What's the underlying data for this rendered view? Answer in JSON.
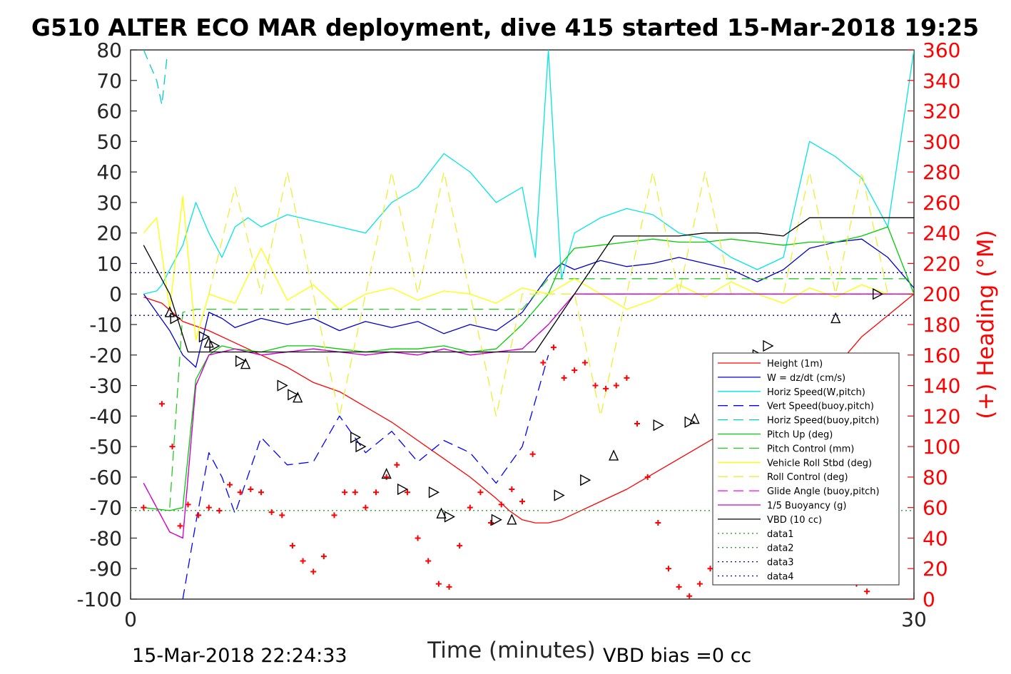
{
  "chart_data": {
    "type": "line",
    "title": "G510 ALTER ECO MAR deployment, dive 415 started 15-Mar-2018 19:25",
    "xlabel": "Time (minutes)",
    "ylabel_right": "(+) Heading (°M)",
    "xlim": [
      0,
      30
    ],
    "ylim_left": [
      -100,
      80
    ],
    "ylim_right": [
      0,
      360
    ],
    "x_ticks": [
      "0",
      "30"
    ],
    "y_ticks_left": [
      "80",
      "70",
      "60",
      "50",
      "40",
      "30",
      "20",
      "10",
      "0",
      "-10",
      "-20",
      "-30",
      "-40",
      "-50",
      "-60",
      "-70",
      "-80",
      "-90",
      "-100"
    ],
    "y_ticks_right": [
      "360",
      "340",
      "320",
      "300",
      "280",
      "260",
      "240",
      "220",
      "200",
      "180",
      "160",
      "140",
      "120",
      "100",
      "80",
      "60",
      "40",
      "20",
      "0"
    ],
    "grid": false,
    "legend_position": "lower-right",
    "footer_left": "15-Mar-2018 22:24:33",
    "footer_right": "VBD bias =0 cc",
    "colors": {
      "height": "#ff0000",
      "w": "#0000cc",
      "horiz_speed_w": "#00e5e5",
      "vert_speed_buoy": "#0000ff",
      "horiz_speed_buoy": "#00cccc",
      "pitch_up": "#00cc00",
      "pitch_control": "#22cc22",
      "roll": "#ffff00",
      "roll_control": "#eeee33",
      "glide_angle": "#ff00ff",
      "buoyancy": "#cc00cc",
      "vbd": "#000000",
      "heading": "#ff0000",
      "data": "#2ca02c",
      "data_blue": "#0000aa"
    },
    "series": [
      {
        "name": "Height (1m)",
        "style": "solid",
        "color_key": "height",
        "x": [
          0.5,
          1.2,
          2,
          3,
          4,
          5,
          6,
          7,
          8,
          9,
          10,
          11,
          12,
          13,
          14,
          14.5,
          15,
          15.5,
          16,
          16.5,
          17,
          18,
          19,
          20,
          21,
          22,
          23,
          24,
          25,
          26,
          27,
          28,
          29,
          30
        ],
        "y": [
          -1,
          -3,
          -9,
          -12,
          -16,
          -20,
          -24,
          -29,
          -32,
          -37,
          -42,
          -48,
          -54,
          -60,
          -67,
          -71,
          -74,
          -75,
          -75,
          -74,
          -72,
          -68,
          -64,
          -59,
          -54,
          -49,
          -44,
          -41,
          -38,
          -33,
          -24,
          -14,
          -7,
          0
        ]
      },
      {
        "name": "W = dz/dt (cm/s)",
        "style": "solid",
        "color_key": "w",
        "x": [
          0.5,
          1.5,
          2,
          2.5,
          3,
          3.5,
          4,
          5,
          6,
          7,
          8,
          9,
          10,
          11,
          12,
          13,
          14,
          15,
          15.5,
          16,
          16.5,
          17,
          18,
          19,
          20,
          21,
          22,
          23,
          24,
          25,
          26,
          27,
          28,
          29,
          30
        ],
        "y": [
          0,
          -12,
          -20,
          -24,
          -6,
          -8,
          -11,
          -8,
          -10,
          -8,
          -12,
          -9,
          -11,
          -9,
          -13,
          -10,
          -12,
          -6,
          0,
          6,
          10,
          8,
          11,
          9,
          10,
          12,
          10,
          8,
          4,
          8,
          15,
          17,
          18,
          12,
          2
        ]
      },
      {
        "name": "Horiz Speed(W,pitch)",
        "style": "solid",
        "color_key": "horiz_speed_w",
        "x": [
          0.5,
          1,
          1.2,
          1.5,
          2,
          2.5,
          3,
          3.5,
          4,
          4.5,
          5,
          6,
          7,
          8,
          9,
          10,
          11,
          12,
          13,
          14,
          15,
          15.5,
          16,
          16.5,
          17,
          18,
          19,
          20,
          21,
          22,
          23,
          24,
          25,
          26,
          27,
          28,
          29,
          30
        ],
        "y": [
          0,
          1,
          3,
          8,
          16,
          30,
          20,
          12,
          22,
          25,
          22,
          26,
          24,
          22,
          20,
          30,
          35,
          46,
          40,
          30,
          35,
          12,
          80,
          5,
          20,
          25,
          28,
          26,
          20,
          18,
          12,
          8,
          12,
          50,
          45,
          38,
          22,
          80
        ]
      },
      {
        "name": "Vert Speed(buoy,pitch)",
        "style": "dash",
        "color_key": "vert_speed_buoy",
        "x": [
          2,
          2.5,
          3,
          3.5,
          4,
          5,
          6,
          7,
          8,
          9,
          10,
          11,
          12,
          13,
          14,
          15,
          16
        ],
        "y": [
          -100,
          -75,
          -52,
          -60,
          -72,
          -47,
          -56,
          -55,
          -40,
          -52,
          -45,
          -55,
          -48,
          -52,
          -62,
          -50,
          -20
        ]
      },
      {
        "name": "Horiz Speed(buoy,pitch)",
        "style": "dash",
        "color_key": "horiz_speed_buoy",
        "x": [
          0.5,
          1,
          1.2,
          1.4
        ],
        "y": [
          80,
          70,
          62,
          78
        ]
      },
      {
        "name": "Pitch Up (deg)",
        "style": "solid",
        "color_key": "pitch_up",
        "x": [
          0.5,
          1.5,
          2,
          2.5,
          3,
          3.5,
          4,
          5,
          6,
          7,
          8,
          9,
          10,
          11,
          12,
          13,
          14,
          15,
          16,
          16.5,
          17,
          18,
          19,
          20,
          21,
          22,
          23,
          24,
          25,
          26,
          27,
          28,
          29,
          30
        ],
        "y": [
          -70,
          -71,
          -70,
          -28,
          -20,
          -17,
          -18,
          -19,
          -17,
          -17,
          -18,
          -19,
          -18,
          -18,
          -17,
          -19,
          -18,
          -10,
          0,
          10,
          15,
          16,
          17,
          18,
          17,
          17,
          18,
          17,
          16,
          17,
          17,
          19,
          22,
          0
        ]
      },
      {
        "name": "Pitch Control (mm)",
        "style": "dash",
        "color_key": "pitch_control",
        "x": [
          1.5,
          2,
          2.5,
          15,
          16,
          30
        ],
        "y": [
          -70,
          -6,
          -5,
          -5,
          5,
          5
        ]
      },
      {
        "name": "Vehicle Roll Stbd (deg)",
        "style": "solid",
        "color_key": "roll",
        "x": [
          0.5,
          1,
          1.5,
          2,
          2.5,
          3,
          4,
          5,
          6,
          7,
          8,
          9,
          10,
          11,
          12,
          13,
          14,
          15,
          16,
          17,
          18,
          19,
          20,
          21,
          22,
          23,
          24,
          25,
          26,
          27,
          28,
          29,
          30
        ],
        "y": [
          20,
          25,
          -5,
          32,
          -15,
          0,
          -3,
          15,
          -2,
          3,
          -5,
          0,
          2,
          -2,
          1,
          0,
          -3,
          2,
          0,
          5,
          0,
          -5,
          -2,
          3,
          -1,
          4,
          0,
          -3,
          2,
          -1,
          3,
          0,
          0
        ]
      },
      {
        "name": "Roll Control (deg)",
        "style": "dash",
        "color_key": "roll_control",
        "x": [
          3,
          4,
          5,
          6,
          7,
          8,
          9,
          10,
          11,
          12,
          13,
          14,
          15,
          16,
          17,
          18,
          19,
          20,
          21,
          22,
          23,
          24,
          25,
          26,
          27,
          28,
          29,
          30
        ],
        "y": [
          0,
          35,
          0,
          40,
          0,
          -40,
          0,
          40,
          0,
          40,
          0,
          -40,
          0,
          0,
          0,
          -40,
          0,
          40,
          0,
          40,
          0,
          0,
          0,
          40,
          0,
          40,
          0,
          0
        ]
      },
      {
        "name": "Glide Angle (buoy,pitch)",
        "style": "dash",
        "color_key": "glide_angle",
        "x": [
          0.5,
          1.5,
          2,
          2.5,
          3,
          4,
          5,
          6,
          7,
          8,
          9,
          10,
          11,
          12,
          13,
          14,
          15,
          16,
          17,
          30
        ],
        "y": [
          -62,
          -78,
          -80,
          -30,
          -20,
          -18,
          -20,
          -19,
          -18,
          -19,
          -20,
          -19,
          -20,
          -18,
          -20,
          -19,
          -18,
          -10,
          0,
          0
        ]
      },
      {
        "name": "1/5 Buoyancy (g)",
        "style": "solid",
        "color_key": "buoyancy",
        "x": [
          0.5,
          1.5,
          2,
          2.5,
          3,
          4,
          5,
          6,
          7,
          8,
          9,
          10,
          11,
          12,
          13,
          14,
          15,
          16,
          17,
          30
        ],
        "y": [
          -62,
          -78,
          -80,
          -30,
          -20,
          -18,
          -20,
          -19,
          -18,
          -19,
          -20,
          -19,
          -20,
          -18,
          -20,
          -19,
          -18,
          -10,
          0,
          0
        ]
      },
      {
        "name": "VBD (10 cc)",
        "style": "solid",
        "color_key": "vbd",
        "x": [
          0.5,
          1.5,
          2.2,
          3,
          5,
          10,
          15.5,
          17,
          18.5,
          21,
          22,
          24,
          25,
          26,
          28,
          30
        ],
        "y": [
          16,
          0,
          -19,
          -19,
          -19,
          -19,
          -19,
          0,
          19,
          19,
          20,
          20,
          19,
          25,
          25,
          25
        ]
      },
      {
        "name": "data1",
        "style": "dot",
        "color_key": "data",
        "x": [
          0,
          30
        ],
        "y": [
          -71,
          -71
        ]
      },
      {
        "name": "data2",
        "style": "dot",
        "color_key": "data",
        "x": [
          0,
          30
        ],
        "y": [
          -71,
          -71
        ]
      },
      {
        "name": "data3",
        "style": "dot",
        "color_key": "data_blue",
        "x": [
          0,
          30
        ],
        "y": [
          7,
          7
        ]
      },
      {
        "name": "data4",
        "style": "dot",
        "color_key": "data_blue",
        "x": [
          0,
          30
        ],
        "y": [
          -7,
          -7
        ]
      }
    ],
    "heading": {
      "axis": "right",
      "marker": "+",
      "color_key": "heading",
      "x": [
        0.5,
        1.2,
        1.6,
        1.9,
        2.2,
        2.6,
        3,
        3.4,
        3.8,
        4.2,
        4.6,
        5,
        5.4,
        5.8,
        6.2,
        6.6,
        7,
        7.4,
        7.8,
        8.2,
        8.6,
        9,
        9.4,
        9.8,
        10.2,
        10.6,
        11,
        11.4,
        11.8,
        12.2,
        12.6,
        13,
        13.4,
        13.8,
        14.2,
        14.6,
        15,
        15.4,
        15.8,
        16.2,
        16.6,
        17,
        17.4,
        17.8,
        18.2,
        18.6,
        19,
        19.4,
        19.8,
        20.2,
        20.6,
        21,
        21.4,
        21.8,
        22.2,
        22.6,
        23,
        23.4,
        23.8,
        24.2,
        24.6,
        25,
        25.4,
        25.8,
        26.2,
        26.6,
        27,
        27.4,
        27.8,
        28.2
      ],
      "y": [
        60,
        128,
        100,
        48,
        62,
        55,
        60,
        58,
        75,
        70,
        72,
        70,
        57,
        55,
        35,
        25,
        18,
        28,
        55,
        70,
        70,
        60,
        70,
        80,
        88,
        70,
        40,
        25,
        10,
        8,
        35,
        60,
        70,
        50,
        62,
        72,
        64,
        95,
        155,
        165,
        145,
        150,
        155,
        140,
        138,
        140,
        145,
        115,
        80,
        50,
        20,
        8,
        2,
        10,
        20,
        60,
        75,
        82,
        88,
        85,
        75,
        65,
        55,
        45,
        42,
        40,
        28,
        22,
        10,
        5
      ]
    },
    "triangle_markers": {
      "x": [
        1.5,
        1.7,
        2.8,
        3.0,
        3.2,
        4.2,
        4.4,
        5.8,
        6.2,
        6.4,
        8.6,
        8.8,
        9.8,
        10.4,
        11.6,
        11.9,
        12.2,
        14.0,
        14.6,
        16.4,
        17.4,
        18.5,
        20.2,
        21.4,
        21.6,
        24.0,
        24.4,
        27.0,
        28.6
      ],
      "y": [
        -6,
        -8,
        -14,
        -16,
        -17,
        -22,
        -23,
        -30,
        -33,
        -34,
        -47,
        -50,
        -59,
        -64,
        -65,
        -72,
        -73,
        -74,
        -74,
        -66,
        -61,
        -53,
        -43,
        -42,
        -41,
        -20,
        -17,
        -8,
        0
      ]
    }
  }
}
